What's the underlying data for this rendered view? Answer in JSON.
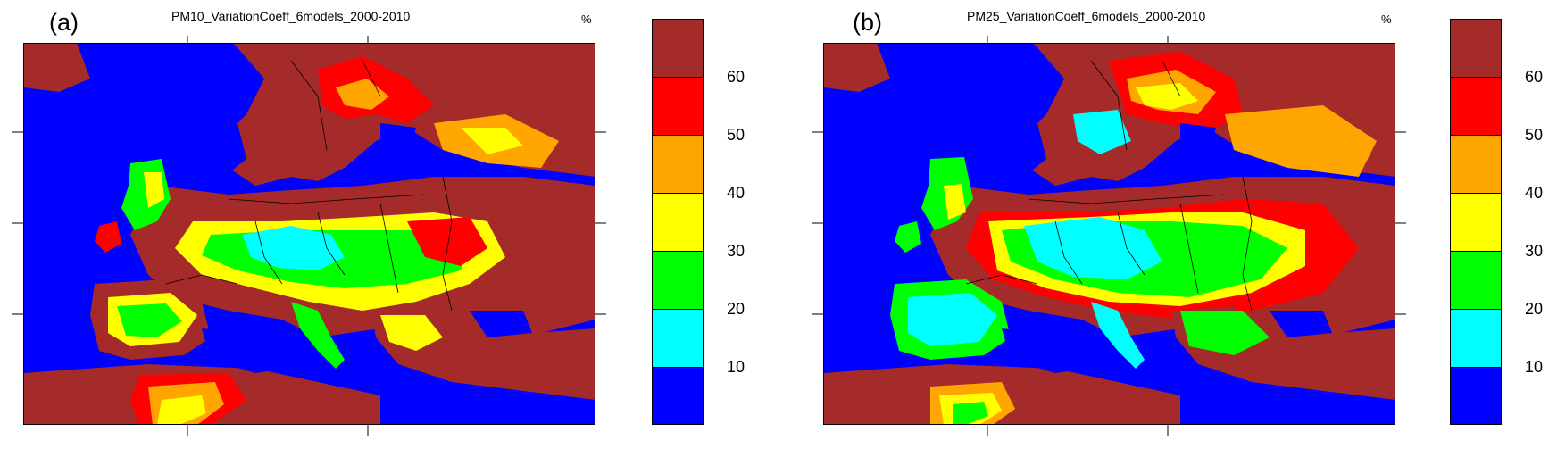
{
  "panels": [
    {
      "letter": "(a)",
      "title": "PM10_VariationCoeff_6models_2000-2010",
      "units": "%",
      "colorbar": {
        "labels": [
          "60",
          "50",
          "40",
          "30",
          "20",
          "10"
        ],
        "colors": [
          "#a52a2a",
          "#ff0000",
          "#ffa500",
          "#ffff00",
          "#00ff00",
          "#00ffff",
          "#0000ff"
        ]
      }
    },
    {
      "letter": "(b)",
      "title": "PM25_VariationCoeff_6models_2000-2010",
      "units": "%",
      "colorbar": {
        "labels": [
          "60",
          "50",
          "40",
          "30",
          "20",
          "10"
        ],
        "colors": [
          "#a52a2a",
          "#ff0000",
          "#ffa500",
          "#ffff00",
          "#00ff00",
          "#00ffff",
          "#0000ff"
        ]
      }
    }
  ],
  "colors": {
    "sea": "#0000ff",
    "high": "#a52a2a",
    "border": "#000000"
  }
}
